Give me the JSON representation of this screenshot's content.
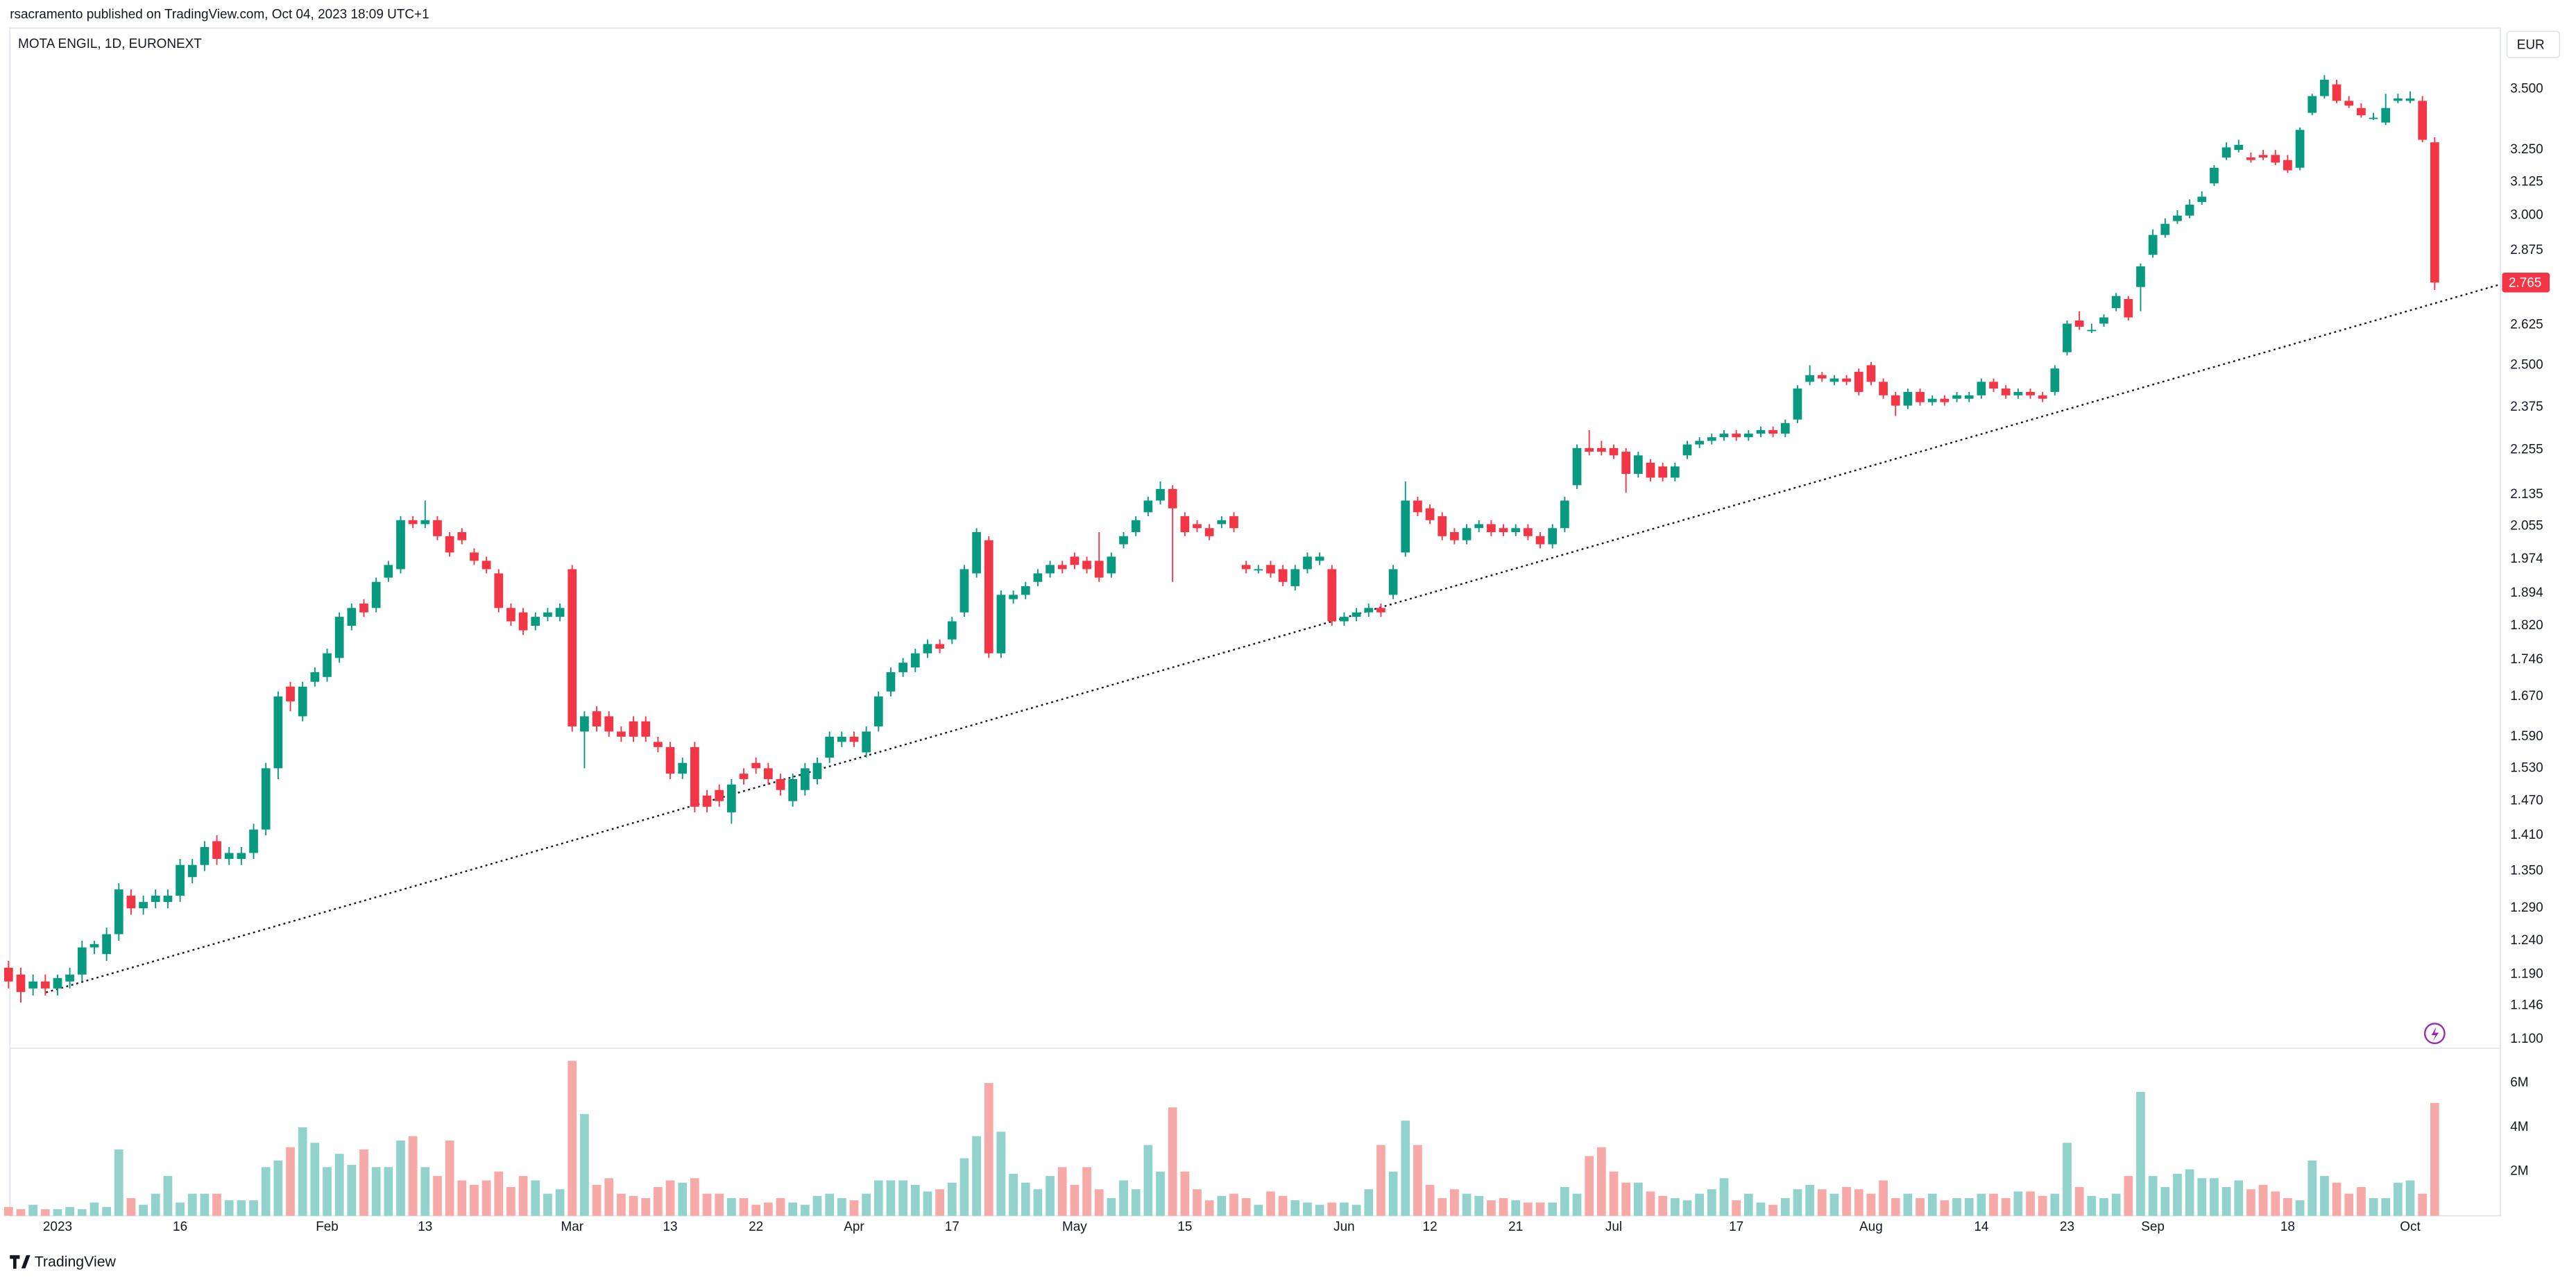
{
  "header": "rsacramento published on TradingView.com, Oct 04, 2023 18:09 UTC+1",
  "footer": "TradingView",
  "chart_data": {
    "type": "candlestick",
    "title": "MOTA ENGIL, 1D, EURONEXT",
    "currency": "EUR",
    "log_scale": true,
    "grid": false,
    "up_color": "#089981",
    "down_color": "#f23645",
    "volume_up_color": "#92d2cc",
    "volume_down_color": "#f7a9a7",
    "open": [
      1.2,
      1.19,
      1.17,
      1.18,
      1.17,
      1.18,
      1.19,
      1.23,
      1.22,
      1.25,
      1.31,
      1.29,
      1.3,
      1.3,
      1.31,
      1.34,
      1.36,
      1.4,
      1.37,
      1.37,
      1.38,
      1.42,
      1.53,
      1.69,
      1.63,
      1.7,
      1.71,
      1.75,
      1.82,
      1.87,
      1.86,
      1.93,
      1.95,
      2.07,
      2.06,
      2.07,
      2.03,
      2.04,
      1.99,
      1.97,
      1.94,
      1.86,
      1.85,
      1.82,
      1.84,
      1.84,
      1.95,
      1.6,
      1.64,
      1.63,
      1.6,
      1.62,
      1.62,
      1.58,
      1.57,
      1.52,
      1.57,
      1.48,
      1.49,
      1.45,
      1.52,
      1.54,
      1.53,
      1.51,
      1.47,
      1.49,
      1.51,
      1.55,
      1.58,
      1.59,
      1.56,
      1.61,
      1.68,
      1.72,
      1.73,
      1.76,
      1.78,
      1.79,
      1.85,
      1.94,
      2.02,
      1.76,
      1.88,
      1.89,
      1.92,
      1.94,
      1.96,
      1.98,
      1.97,
      1.97,
      1.94,
      2.01,
      2.04,
      2.09,
      2.12,
      2.15,
      2.08,
      2.06,
      2.05,
      2.06,
      2.08,
      1.96,
      1.95,
      1.96,
      1.95,
      1.91,
      1.95,
      1.97,
      1.95,
      1.83,
      1.84,
      1.85,
      1.86,
      1.89,
      1.99,
      2.12,
      2.1,
      2.08,
      2.04,
      2.02,
      2.05,
      2.06,
      2.05,
      2.04,
      2.05,
      2.03,
      2.01,
      2.05,
      2.16,
      2.26,
      2.26,
      2.26,
      2.25,
      2.19,
      2.22,
      2.21,
      2.18,
      2.24,
      2.27,
      2.28,
      2.29,
      2.3,
      2.29,
      2.3,
      2.31,
      2.3,
      2.34,
      2.45,
      2.47,
      2.45,
      2.46,
      2.48,
      2.5,
      2.45,
      2.41,
      2.38,
      2.42,
      2.39,
      2.4,
      2.4,
      2.4,
      2.41,
      2.45,
      2.43,
      2.41,
      2.42,
      2.41,
      2.42,
      2.54,
      2.64,
      2.61,
      2.63,
      2.68,
      2.71,
      2.75,
      2.86,
      2.93,
      2.98,
      3.0,
      3.05,
      3.12,
      3.22,
      3.25,
      3.22,
      3.23,
      3.23,
      3.21,
      3.18,
      3.4,
      3.47,
      3.52,
      3.45,
      3.42,
      3.38,
      3.36,
      3.45,
      3.45,
      3.45,
      3.28
    ],
    "high": [
      1.21,
      1.2,
      1.19,
      1.19,
      1.19,
      1.2,
      1.24,
      1.24,
      1.26,
      1.33,
      1.32,
      1.31,
      1.32,
      1.32,
      1.37,
      1.37,
      1.4,
      1.41,
      1.39,
      1.39,
      1.43,
      1.54,
      1.68,
      1.7,
      1.7,
      1.73,
      1.77,
      1.85,
      1.87,
      1.88,
      1.93,
      1.97,
      2.08,
      2.08,
      2.12,
      2.08,
      2.04,
      2.05,
      2.0,
      1.98,
      1.95,
      1.87,
      1.86,
      1.85,
      1.86,
      1.87,
      1.96,
      1.64,
      1.65,
      1.64,
      1.61,
      1.63,
      1.63,
      1.59,
      1.58,
      1.55,
      1.58,
      1.49,
      1.5,
      1.51,
      1.53,
      1.55,
      1.54,
      1.52,
      1.52,
      1.54,
      1.55,
      1.6,
      1.6,
      1.6,
      1.61,
      1.68,
      1.73,
      1.75,
      1.77,
      1.79,
      1.79,
      1.84,
      1.96,
      2.05,
      2.03,
      1.9,
      1.9,
      1.92,
      1.95,
      1.97,
      1.97,
      1.99,
      1.98,
      2.04,
      1.99,
      2.04,
      2.08,
      2.13,
      2.17,
      2.16,
      2.09,
      2.07,
      2.06,
      2.08,
      2.09,
      1.97,
      1.96,
      1.97,
      1.96,
      1.96,
      1.99,
      1.99,
      1.96,
      1.85,
      1.86,
      1.87,
      1.87,
      1.96,
      2.17,
      2.13,
      2.11,
      2.09,
      2.05,
      2.06,
      2.07,
      2.07,
      2.06,
      2.06,
      2.06,
      2.04,
      2.06,
      2.13,
      2.27,
      2.31,
      2.28,
      2.27,
      2.26,
      2.25,
      2.23,
      2.22,
      2.22,
      2.28,
      2.29,
      2.3,
      2.31,
      2.31,
      2.31,
      2.32,
      2.32,
      2.34,
      2.44,
      2.5,
      2.48,
      2.47,
      2.47,
      2.49,
      2.51,
      2.46,
      2.42,
      2.43,
      2.43,
      2.41,
      2.41,
      2.42,
      2.42,
      2.46,
      2.46,
      2.44,
      2.43,
      2.43,
      2.42,
      2.5,
      2.64,
      2.67,
      2.63,
      2.66,
      2.73,
      2.72,
      2.83,
      2.95,
      2.99,
      3.02,
      3.06,
      3.09,
      3.19,
      3.28,
      3.29,
      3.24,
      3.25,
      3.25,
      3.23,
      3.34,
      3.48,
      3.56,
      3.54,
      3.47,
      3.44,
      3.4,
      3.48,
      3.48,
      3.49,
      3.47,
      3.3
    ],
    "low": [
      1.17,
      1.15,
      1.16,
      1.16,
      1.16,
      1.17,
      1.18,
      1.22,
      1.21,
      1.24,
      1.28,
      1.28,
      1.29,
      1.29,
      1.3,
      1.33,
      1.35,
      1.36,
      1.36,
      1.36,
      1.37,
      1.41,
      1.51,
      1.64,
      1.62,
      1.69,
      1.7,
      1.74,
      1.81,
      1.84,
      1.85,
      1.92,
      1.94,
      2.05,
      2.05,
      2.02,
      1.98,
      2.01,
      1.96,
      1.94,
      1.85,
      1.82,
      1.8,
      1.81,
      1.83,
      1.83,
      1.6,
      1.53,
      1.6,
      1.59,
      1.58,
      1.58,
      1.58,
      1.56,
      1.51,
      1.51,
      1.45,
      1.45,
      1.46,
      1.43,
      1.5,
      1.52,
      1.5,
      1.48,
      1.46,
      1.48,
      1.5,
      1.54,
      1.57,
      1.57,
      1.55,
      1.6,
      1.67,
      1.71,
      1.72,
      1.75,
      1.76,
      1.78,
      1.84,
      1.93,
      1.75,
      1.75,
      1.87,
      1.88,
      1.91,
      1.93,
      1.94,
      1.95,
      1.94,
      1.92,
      1.93,
      2.0,
      2.03,
      2.08,
      2.11,
      1.92,
      2.03,
      2.04,
      2.02,
      2.05,
      2.04,
      1.94,
      1.94,
      1.93,
      1.91,
      1.9,
      1.94,
      1.96,
      1.82,
      1.82,
      1.83,
      1.84,
      1.84,
      1.88,
      1.98,
      2.08,
      2.06,
      2.02,
      2.01,
      2.01,
      2.04,
      2.03,
      2.03,
      2.03,
      2.02,
      2.0,
      2.0,
      2.04,
      2.15,
      2.24,
      2.24,
      2.23,
      2.14,
      2.18,
      2.17,
      2.17,
      2.17,
      2.23,
      2.26,
      2.27,
      2.28,
      2.28,
      2.28,
      2.29,
      2.29,
      2.29,
      2.33,
      2.44,
      2.45,
      2.44,
      2.44,
      2.41,
      2.44,
      2.4,
      2.35,
      2.37,
      2.38,
      2.38,
      2.38,
      2.39,
      2.39,
      2.4,
      2.42,
      2.4,
      2.4,
      2.4,
      2.39,
      2.41,
      2.53,
      2.61,
      2.6,
      2.62,
      2.67,
      2.64,
      2.67,
      2.85,
      2.92,
      2.97,
      2.99,
      3.04,
      3.11,
      3.21,
      3.24,
      3.2,
      3.21,
      3.19,
      3.16,
      3.17,
      3.39,
      3.46,
      3.44,
      3.42,
      3.38,
      3.37,
      3.35,
      3.44,
      3.44,
      3.28,
      2.74
    ],
    "close": [
      1.18,
      1.165,
      1.18,
      1.17,
      1.185,
      1.19,
      1.23,
      1.235,
      1.25,
      1.32,
      1.29,
      1.3,
      1.31,
      1.31,
      1.36,
      1.36,
      1.39,
      1.37,
      1.38,
      1.38,
      1.42,
      1.53,
      1.67,
      1.66,
      1.69,
      1.72,
      1.76,
      1.84,
      1.86,
      1.85,
      1.92,
      1.96,
      2.07,
      2.06,
      2.07,
      2.03,
      1.99,
      2.02,
      1.97,
      1.95,
      1.86,
      1.83,
      1.81,
      1.84,
      1.85,
      1.86,
      1.61,
      1.63,
      1.61,
      1.6,
      1.59,
      1.59,
      1.59,
      1.57,
      1.52,
      1.54,
      1.46,
      1.46,
      1.47,
      1.5,
      1.51,
      1.53,
      1.51,
      1.49,
      1.51,
      1.53,
      1.54,
      1.59,
      1.59,
      1.58,
      1.6,
      1.67,
      1.72,
      1.74,
      1.76,
      1.78,
      1.77,
      1.83,
      1.95,
      2.04,
      1.76,
      1.89,
      1.89,
      1.91,
      1.94,
      1.96,
      1.95,
      1.96,
      1.95,
      1.93,
      1.98,
      2.03,
      2.07,
      2.12,
      2.15,
      2.1,
      2.04,
      2.05,
      2.03,
      2.07,
      2.05,
      1.95,
      1.95,
      1.94,
      1.92,
      1.95,
      1.98,
      1.98,
      1.83,
      1.84,
      1.85,
      1.86,
      1.85,
      1.95,
      2.12,
      2.09,
      2.07,
      2.03,
      2.02,
      2.05,
      2.06,
      2.04,
      2.04,
      2.05,
      2.03,
      2.01,
      2.05,
      2.12,
      2.26,
      2.25,
      2.25,
      2.24,
      2.19,
      2.24,
      2.18,
      2.18,
      2.21,
      2.27,
      2.28,
      2.29,
      2.3,
      2.29,
      2.3,
      2.31,
      2.3,
      2.33,
      2.43,
      2.47,
      2.46,
      2.46,
      2.45,
      2.42,
      2.45,
      2.41,
      2.38,
      2.42,
      2.39,
      2.4,
      2.39,
      2.41,
      2.41,
      2.45,
      2.43,
      2.41,
      2.42,
      2.41,
      2.4,
      2.49,
      2.63,
      2.62,
      2.61,
      2.65,
      2.72,
      2.65,
      2.82,
      2.93,
      2.97,
      3.0,
      3.04,
      3.07,
      3.18,
      3.26,
      3.27,
      3.21,
      3.22,
      3.2,
      3.17,
      3.33,
      3.47,
      3.54,
      3.45,
      3.43,
      3.39,
      3.38,
      3.42,
      3.46,
      3.46,
      3.29,
      2.765
    ],
    "volume": [
      400000,
      300000,
      500000,
      300000,
      300000,
      400000,
      300000,
      600000,
      400000,
      3000000,
      800000,
      500000,
      1000000,
      1800000,
      600000,
      1000000,
      1000000,
      1000000,
      700000,
      700000,
      700000,
      2200000,
      2500000,
      3100000,
      4000000,
      3300000,
      2200000,
      2800000,
      2300000,
      3000000,
      2200000,
      2200000,
      3400000,
      3600000,
      2200000,
      1800000,
      3400000,
      1600000,
      1400000,
      1600000,
      2000000,
      1300000,
      1800000,
      1600000,
      1000000,
      1200000,
      7000000,
      4600000,
      1400000,
      1700000,
      1000000,
      900000,
      800000,
      1300000,
      1600000,
      1500000,
      1700000,
      1000000,
      1000000,
      800000,
      800000,
      500000,
      600000,
      800000,
      600000,
      500000,
      900000,
      1000000,
      800000,
      700000,
      1000000,
      1600000,
      1600000,
      1600000,
      1400000,
      1100000,
      1200000,
      1500000,
      2600000,
      3600000,
      6000000,
      3800000,
      1900000,
      1500000,
      1200000,
      1800000,
      2200000,
      1400000,
      2200000,
      1200000,
      800000,
      1600000,
      1200000,
      3200000,
      2000000,
      4900000,
      2000000,
      1200000,
      700000,
      900000,
      1000000,
      800000,
      500000,
      1100000,
      900000,
      700000,
      600000,
      500000,
      600000,
      600000,
      500000,
      1200000,
      3200000,
      2000000,
      4300000,
      3200000,
      1400000,
      800000,
      1200000,
      1000000,
      900000,
      700000,
      800000,
      700000,
      600000,
      600000,
      600000,
      1300000,
      1000000,
      2700000,
      3100000,
      2000000,
      1500000,
      1500000,
      1100000,
      900000,
      800000,
      700000,
      1000000,
      1200000,
      1700000,
      700000,
      1000000,
      600000,
      500000,
      800000,
      1200000,
      1400000,
      1200000,
      1000000,
      1300000,
      1200000,
      1000000,
      1600000,
      800000,
      1000000,
      800000,
      1000000,
      700000,
      800000,
      800000,
      1000000,
      1000000,
      800000,
      1100000,
      1100000,
      900000,
      1000000,
      3300000,
      1300000,
      900000,
      800000,
      1000000,
      1800000,
      5600000,
      1800000,
      1300000,
      1900000,
      2100000,
      1700000,
      1700000,
      1300000,
      1600000,
      1200000,
      1400000,
      1100000,
      800000,
      700000,
      2500000,
      1800000,
      1500000,
      1000000,
      1300000,
      800000,
      800000,
      1500000,
      1600000,
      1000000,
      5100000
    ],
    "ylim": [
      1.09,
      3.77
    ],
    "yticks": [
      {
        "value": 1.1,
        "label": "1.100"
      },
      {
        "value": 1.146,
        "label": "1.146"
      },
      {
        "value": 1.19,
        "label": "1.190"
      },
      {
        "value": 1.24,
        "label": "1.240"
      },
      {
        "value": 1.29,
        "label": "1.290"
      },
      {
        "value": 1.35,
        "label": "1.350"
      },
      {
        "value": 1.41,
        "label": "1.410"
      },
      {
        "value": 1.47,
        "label": "1.470"
      },
      {
        "value": 1.53,
        "label": "1.530"
      },
      {
        "value": 1.59,
        "label": "1.590"
      },
      {
        "value": 1.67,
        "label": "1.670"
      },
      {
        "value": 1.746,
        "label": "1.746"
      },
      {
        "value": 1.82,
        "label": "1.820"
      },
      {
        "value": 1.894,
        "label": "1.894"
      },
      {
        "value": 1.974,
        "label": "1.974"
      },
      {
        "value": 2.055,
        "label": "2.055"
      },
      {
        "value": 2.135,
        "label": "2.135"
      },
      {
        "value": 2.255,
        "label": "2.255"
      },
      {
        "value": 2.375,
        "label": "2.375"
      },
      {
        "value": 2.5,
        "label": "2.500"
      },
      {
        "value": 2.625,
        "label": "2.625"
      },
      {
        "value": 2.875,
        "label": "2.875"
      },
      {
        "value": 3.0,
        "label": "3.000"
      },
      {
        "value": 3.125,
        "label": "3.125"
      },
      {
        "value": 3.25,
        "label": "3.250"
      },
      {
        "value": 3.5,
        "label": "3.500"
      }
    ],
    "volume_ylim": [
      0,
      7200000
    ],
    "volume_yticks": [
      {
        "value": 2000000,
        "label": "2M"
      },
      {
        "value": 4000000,
        "label": "4M"
      },
      {
        "value": 6000000,
        "label": "6M"
      }
    ],
    "xticks": [
      {
        "value": 4,
        "label": "2023"
      },
      {
        "value": 14,
        "label": "16"
      },
      {
        "value": 26,
        "label": "Feb"
      },
      {
        "value": 34,
        "label": "13"
      },
      {
        "value": 46,
        "label": "Mar"
      },
      {
        "value": 54,
        "label": "13"
      },
      {
        "value": 61,
        "label": "22"
      },
      {
        "value": 69,
        "label": "Apr"
      },
      {
        "value": 77,
        "label": "17"
      },
      {
        "value": 87,
        "label": "May"
      },
      {
        "value": 96,
        "label": "15"
      },
      {
        "value": 109,
        "label": "Jun"
      },
      {
        "value": 116,
        "label": "12"
      },
      {
        "value": 123,
        "label": "21"
      },
      {
        "value": 131,
        "label": "Jul"
      },
      {
        "value": 141,
        "label": "17"
      },
      {
        "value": 152,
        "label": "Aug"
      },
      {
        "value": 161,
        "label": "14"
      },
      {
        "value": 168,
        "label": "23"
      },
      {
        "value": 175,
        "label": "Sep"
      },
      {
        "value": 186,
        "label": "18"
      },
      {
        "value": 196,
        "label": "Oct"
      }
    ]
  }
}
